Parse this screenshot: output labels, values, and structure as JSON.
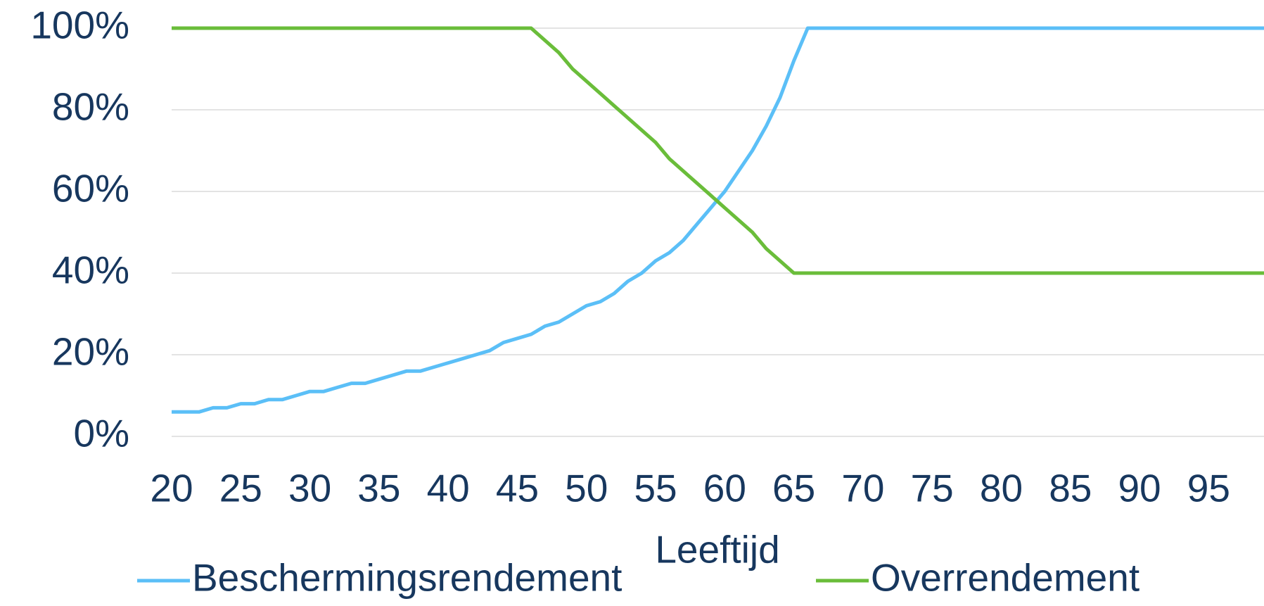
{
  "chart_data": {
    "type": "line",
    "xlabel": "Leeftijd",
    "x": [
      20,
      21,
      22,
      23,
      24,
      25,
      26,
      27,
      28,
      29,
      30,
      31,
      32,
      33,
      34,
      35,
      36,
      37,
      38,
      39,
      40,
      41,
      42,
      43,
      44,
      45,
      46,
      47,
      48,
      49,
      50,
      51,
      52,
      53,
      54,
      55,
      56,
      57,
      58,
      59,
      60,
      61,
      62,
      63,
      64,
      65,
      66,
      99
    ],
    "series": [
      {
        "name": "Beschermingsrendement",
        "color": "#5bbff7",
        "values": [
          6,
          6,
          6,
          7,
          7,
          8,
          8,
          9,
          9,
          10,
          11,
          11,
          12,
          13,
          13,
          14,
          15,
          16,
          16,
          17,
          18,
          19,
          20,
          21,
          23,
          24,
          25,
          27,
          28,
          30,
          32,
          33,
          35,
          38,
          40,
          43,
          45,
          48,
          52,
          56,
          60,
          65,
          70,
          76,
          83,
          92,
          100,
          100
        ]
      },
      {
        "name": "Overrendement",
        "color": "#6abd3a",
        "values": [
          100,
          100,
          100,
          100,
          100,
          100,
          100,
          100,
          100,
          100,
          100,
          100,
          100,
          100,
          100,
          100,
          100,
          100,
          100,
          100,
          100,
          100,
          100,
          100,
          100,
          100,
          100,
          97,
          94,
          90,
          87,
          84,
          81,
          78,
          75,
          72,
          68,
          65,
          62,
          59,
          56,
          53,
          50,
          46,
          43,
          40,
          40,
          40
        ]
      }
    ],
    "xlim": [
      20,
      99
    ],
    "xticks": [
      20,
      25,
      30,
      35,
      40,
      45,
      50,
      55,
      60,
      65,
      70,
      75,
      80,
      85,
      90,
      95
    ],
    "ylim": [
      0,
      100
    ],
    "yticks": [
      {
        "value": 0,
        "label": "0%"
      },
      {
        "value": 20,
        "label": "20%"
      },
      {
        "value": 40,
        "label": "40%"
      },
      {
        "value": 60,
        "label": "60%"
      },
      {
        "value": 80,
        "label": "80%"
      },
      {
        "value": 100,
        "label": "100%"
      }
    ],
    "grid": true
  }
}
